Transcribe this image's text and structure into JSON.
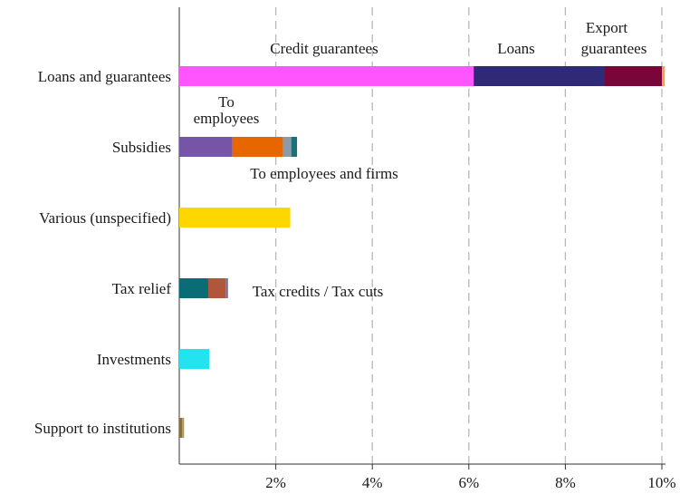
{
  "chart_data": {
    "type": "bar",
    "orientation": "horizontal",
    "stacked": true,
    "xlim": [
      0,
      10
    ],
    "x_ticks": [
      "2%",
      "4%",
      "6%",
      "8%",
      "10%"
    ],
    "x_tick_values": [
      2,
      4,
      6,
      8,
      10
    ],
    "grid": "vertical dashed",
    "legend": "none",
    "categories": [
      "Loans and guarantees",
      "Subsidies",
      "Various (unspecified)",
      "Tax relief",
      "Investments",
      "Support to institutions"
    ],
    "segments": [
      [
        {
          "value": 6.1,
          "color": "#ff55ff"
        },
        {
          "value": 2.7,
          "color": "#2e2a78"
        },
        {
          "value": 1.2,
          "color": "#7a0538"
        },
        {
          "value": 0.06,
          "color": "#f2a050"
        }
      ],
      [
        {
          "value": 1.1,
          "color": "#7654a8"
        },
        {
          "value": 1.05,
          "color": "#e86600"
        },
        {
          "value": 0.17,
          "color": "#8a9aa8"
        },
        {
          "value": 0.12,
          "color": "#1a6f78"
        }
      ],
      [
        {
          "value": 2.3,
          "color": "#ffd700"
        }
      ],
      [
        {
          "value": 0.6,
          "color": "#0a6c74"
        },
        {
          "value": 0.36,
          "color": "#b0563a"
        },
        {
          "value": 0.05,
          "color": "#7a6fa0"
        }
      ],
      [
        {
          "value": 0.62,
          "color": "#22e3ee"
        }
      ],
      [
        {
          "value": 0.06,
          "color": "#8a7040"
        },
        {
          "value": 0.04,
          "color": "#aa9a60"
        }
      ]
    ],
    "annotations": {
      "credit_guarantees": "Credit guarantees",
      "loans": "Loans",
      "export_1": "Export",
      "export_2": "guarantees",
      "to_employees_1": "To",
      "to_employees_2": "employees",
      "to_employees_and_firms": "To employees and firms",
      "tax_credits": "Tax credits / Tax cuts"
    }
  }
}
